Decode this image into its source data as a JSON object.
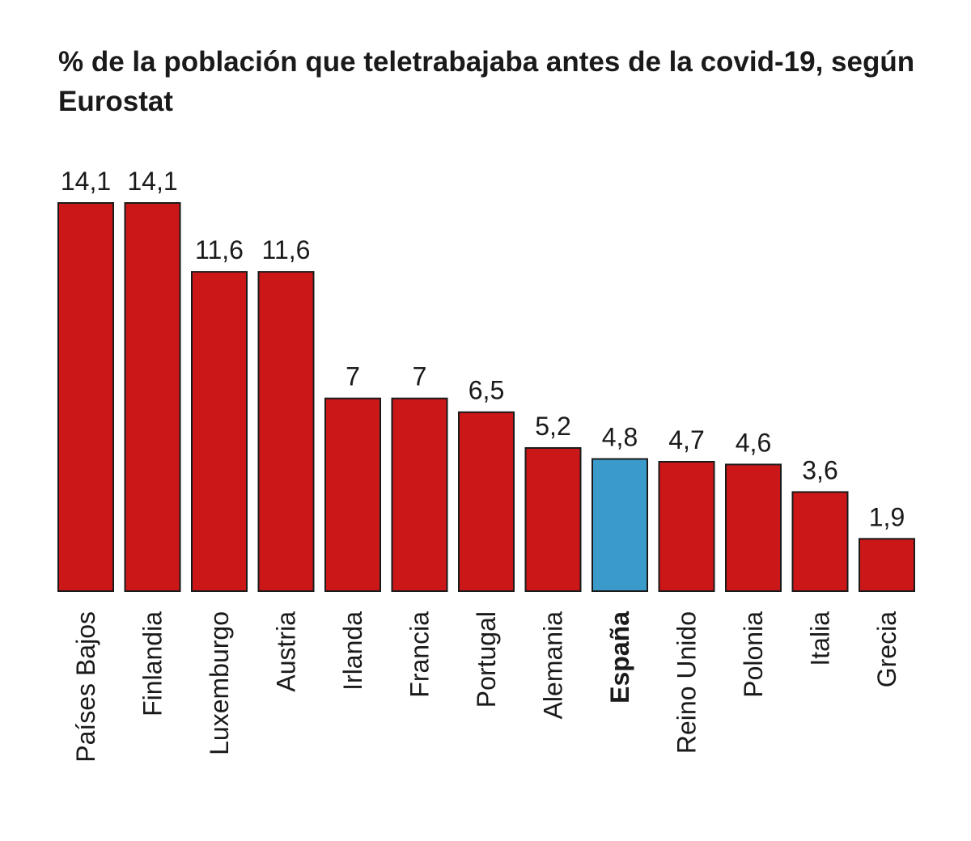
{
  "title": "% de la población que teletrabajaba antes de la covid-19, según Eurostat",
  "chart_data": {
    "type": "bar",
    "title": "% de la población que teletrabajaba antes de la covid-19, según Eurostat",
    "categories": [
      "Países Bajos",
      "Finlandia",
      "Luxemburgo",
      "Austria",
      "Irlanda",
      "Francia",
      "Portugal",
      "Alemania",
      "España",
      "Reino Unido",
      "Polonia",
      "Italia",
      "Grecia"
    ],
    "values": [
      14.1,
      14.1,
      11.6,
      11.6,
      7,
      7,
      6.5,
      5.2,
      4.8,
      4.7,
      4.6,
      3.6,
      1.9
    ],
    "value_labels": [
      "14,1",
      "14,1",
      "11,6",
      "11,6",
      "7",
      "7",
      "6,5",
      "5,2",
      "4,8",
      "4,7",
      "4,6",
      "3,6",
      "1,9"
    ],
    "highlight": "España",
    "colors": {
      "bar": "#cc1719",
      "highlight": "#3a9bcb",
      "stroke": "#1a1a1a"
    },
    "ylim": [
      0,
      14.1
    ],
    "grid": false,
    "legend": "none"
  }
}
